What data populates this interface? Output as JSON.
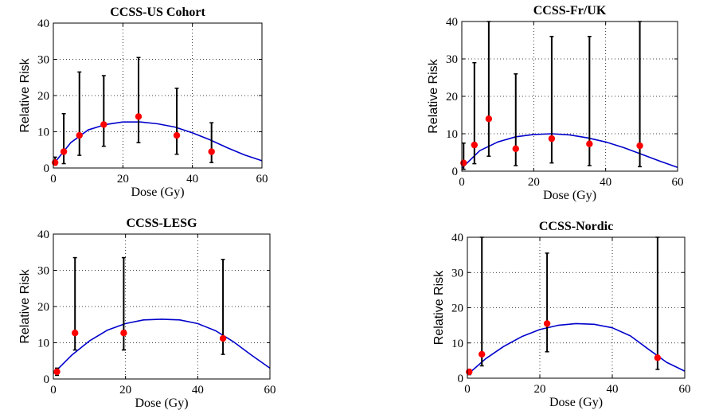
{
  "chart_data": [
    {
      "type": "scatter",
      "title": "CCSS-US Cohort",
      "xlabel": "Dose (Gy)",
      "ylabel": "Relative Risk",
      "xlim": [
        0,
        60
      ],
      "ylim": [
        0,
        40
      ],
      "xticks": [
        "0",
        "20",
        "40",
        "60"
      ],
      "yticks": [
        "0",
        "10",
        "20",
        "30",
        "40"
      ],
      "grid": true,
      "points": [
        {
          "x": 0.5,
          "y": 1.5,
          "lo": 0.8,
          "hi": 3.0
        },
        {
          "x": 3,
          "y": 4.5,
          "lo": 1.2,
          "hi": 15
        },
        {
          "x": 7.5,
          "y": 9,
          "lo": 3.5,
          "hi": 26.5
        },
        {
          "x": 14.5,
          "y": 12,
          "lo": 6,
          "hi": 25.5
        },
        {
          "x": 24.5,
          "y": 14.2,
          "lo": 7,
          "hi": 30.5
        },
        {
          "x": 35.5,
          "y": 9,
          "lo": 3.8,
          "hi": 22
        },
        {
          "x": 45.5,
          "y": 4.5,
          "lo": 1.5,
          "hi": 12.5
        }
      ],
      "curve": {
        "x": [
          0,
          5,
          10,
          15,
          20,
          25,
          30,
          35,
          40,
          45,
          50,
          55,
          60
        ],
        "y": [
          1,
          7,
          10.5,
          12,
          12.7,
          12.7,
          12.2,
          11.3,
          9.7,
          7.8,
          5.6,
          3.6,
          2
        ]
      },
      "colors": {
        "points": "#ff0000",
        "curve": "#0000cc",
        "errorbars": "#000000"
      }
    },
    {
      "type": "scatter",
      "title": "CCSS-Fr/UK",
      "xlabel": "Dose (Gy)",
      "ylabel": "Relative Risk",
      "xlim": [
        0,
        60
      ],
      "ylim": [
        0,
        40
      ],
      "xticks": [
        "0",
        "20",
        "40",
        "60"
      ],
      "yticks": [
        "0",
        "10",
        "20",
        "30",
        "40"
      ],
      "grid": true,
      "points": [
        {
          "x": 0.5,
          "y": 2.2,
          "lo": 0.5,
          "hi": 7.5
        },
        {
          "x": 3.5,
          "y": 7,
          "lo": 2,
          "hi": 29
        },
        {
          "x": 7.5,
          "y": 14,
          "lo": 4,
          "hi": 40
        },
        {
          "x": 15,
          "y": 6,
          "lo": 1.5,
          "hi": 26
        },
        {
          "x": 25,
          "y": 8.7,
          "lo": 2.2,
          "hi": 36
        },
        {
          "x": 35.5,
          "y": 7.3,
          "lo": 1.5,
          "hi": 36
        },
        {
          "x": 49.5,
          "y": 6.8,
          "lo": 1.2,
          "hi": 40
        }
      ],
      "curve": {
        "x": [
          0,
          5,
          10,
          15,
          20,
          25,
          30,
          35,
          40,
          45,
          50,
          55,
          60
        ],
        "y": [
          0.8,
          5.5,
          7.8,
          9.2,
          9.8,
          10,
          9.7,
          8.9,
          7.8,
          6.3,
          4.5,
          2.7,
          1
        ]
      },
      "colors": {
        "points": "#ff0000",
        "curve": "#0000cc",
        "errorbars": "#000000"
      }
    },
    {
      "type": "scatter",
      "title": "CCSS-LESG",
      "xlabel": "Dose (Gy)",
      "ylabel": "Relative Risk",
      "xlim": [
        0,
        60
      ],
      "ylim": [
        0,
        40
      ],
      "xticks": [
        "0",
        "20",
        "40",
        "60"
      ],
      "yticks": [
        "0",
        "10",
        "20",
        "30",
        "40"
      ],
      "grid": true,
      "points": [
        {
          "x": 1,
          "y": 2,
          "lo": 1,
          "hi": 3
        },
        {
          "x": 6,
          "y": 12.7,
          "lo": 8,
          "hi": 33.5
        },
        {
          "x": 19.5,
          "y": 12.7,
          "lo": 8,
          "hi": 33.5
        },
        {
          "x": 47,
          "y": 11.2,
          "lo": 6.8,
          "hi": 33
        }
      ],
      "curve": {
        "x": [
          0,
          5,
          10,
          15,
          20,
          25,
          30,
          35,
          40,
          45,
          50,
          55,
          60
        ],
        "y": [
          1.5,
          6.5,
          10.5,
          13.5,
          15.3,
          16.3,
          16.5,
          16.3,
          15.3,
          13.3,
          10.2,
          6.5,
          3
        ]
      },
      "colors": {
        "points": "#ff0000",
        "curve": "#0000cc",
        "errorbars": "#000000"
      }
    },
    {
      "type": "scatter",
      "title": "CCSS-Nordic",
      "xlabel": "Dose (Gy)",
      "ylabel": "Relative Risk",
      "xlim": [
        0,
        60
      ],
      "ylim": [
        0,
        40
      ],
      "xticks": [
        "0",
        "20",
        "40",
        "60"
      ],
      "yticks": [
        "0",
        "10",
        "20",
        "30",
        "40"
      ],
      "grid": true,
      "points": [
        {
          "x": 0.5,
          "y": 1.8,
          "lo": 1,
          "hi": 2.5
        },
        {
          "x": 4,
          "y": 6.8,
          "lo": 3.5,
          "hi": 40
        },
        {
          "x": 22,
          "y": 15.5,
          "lo": 7.5,
          "hi": 35.5
        },
        {
          "x": 52.5,
          "y": 5.8,
          "lo": 2.5,
          "hi": 40
        }
      ],
      "curve": {
        "x": [
          0,
          5,
          10,
          15,
          20,
          25,
          30,
          35,
          40,
          45,
          50,
          55,
          60
        ],
        "y": [
          1,
          5.5,
          9,
          11.8,
          13.8,
          15,
          15.5,
          15.3,
          14.3,
          12,
          8.2,
          4.5,
          2
        ]
      },
      "colors": {
        "points": "#ff0000",
        "curve": "#0000cc",
        "errorbars": "#000000"
      }
    }
  ]
}
